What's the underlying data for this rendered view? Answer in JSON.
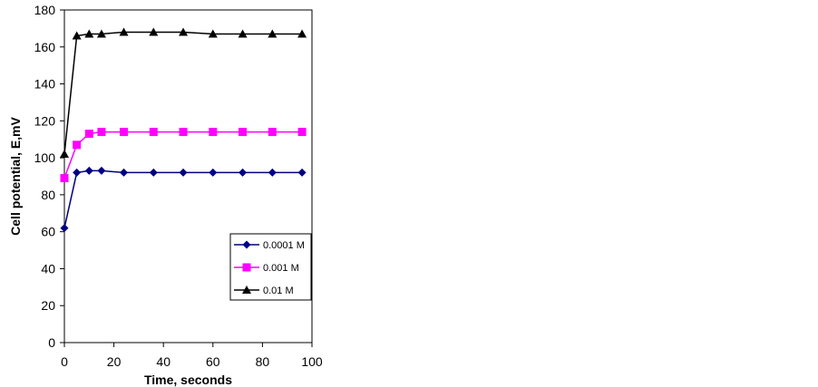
{
  "chart_data": {
    "type": "line",
    "title": "",
    "xlabel": "Time, seconds",
    "ylabel": "Cell potential,  E,mV",
    "xlim": [
      0,
      100
    ],
    "ylim": [
      0,
      180
    ],
    "x_ticks": [
      0,
      20,
      40,
      60,
      80,
      100
    ],
    "y_ticks": [
      0,
      20,
      40,
      60,
      80,
      100,
      120,
      140,
      160,
      180
    ],
    "grid": false,
    "legend_position": "right-middle",
    "series": [
      {
        "name": "0.0001 M",
        "color": "#000080",
        "marker": "diamond",
        "x": [
          0,
          5,
          10,
          15,
          24,
          36,
          48,
          60,
          72,
          84,
          96
        ],
        "values": [
          62,
          92,
          93,
          93,
          92,
          92,
          92,
          92,
          92,
          92,
          92
        ]
      },
      {
        "name": "0.001 M",
        "color": "#ff00ff",
        "marker": "square",
        "x": [
          0,
          5,
          10,
          15,
          24,
          36,
          48,
          60,
          72,
          84,
          96
        ],
        "values": [
          89,
          107,
          113,
          114,
          114,
          114,
          114,
          114,
          114,
          114,
          114
        ]
      },
      {
        "name": "0.01 M",
        "color": "#000000",
        "marker": "triangle",
        "x": [
          0,
          5,
          10,
          15,
          24,
          36,
          48,
          60,
          72,
          84,
          96
        ],
        "values": [
          102,
          166,
          167,
          167,
          168,
          168,
          168,
          167,
          167,
          167,
          167
        ]
      }
    ]
  }
}
